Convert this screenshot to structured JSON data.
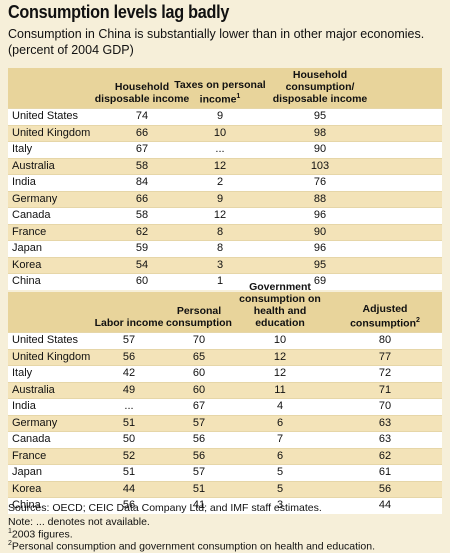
{
  "header": {
    "title": "Consumption levels lag badly",
    "subtitle": "Consumption in China is substantially lower than in other major economies.",
    "unit": "(percent of 2004 GDP)"
  },
  "tables": [
    {
      "columns": [
        {
          "text": "Household disposable income"
        },
        {
          "text": "Taxes on personal income",
          "note": "1"
        },
        {
          "text": "Household consumption/ disposable income"
        }
      ],
      "rows": [
        [
          "United States",
          74,
          9,
          95
        ],
        [
          "United Kingdom",
          66,
          10,
          98
        ],
        [
          "Italy",
          67,
          "...",
          90
        ],
        [
          "Australia",
          58,
          12,
          103
        ],
        [
          "India",
          84,
          2,
          76
        ],
        [
          "Germany",
          66,
          9,
          88
        ],
        [
          "Canada",
          58,
          12,
          96
        ],
        [
          "France",
          62,
          8,
          90
        ],
        [
          "Japan",
          59,
          8,
          96
        ],
        [
          "Korea",
          54,
          3,
          95
        ],
        [
          "China",
          60,
          1,
          69
        ]
      ]
    },
    {
      "columns": [
        {
          "text": "Labor income"
        },
        {
          "text": "Personal consumption"
        },
        {
          "text": "Government consumption on health and education"
        },
        {
          "text": "Adjusted consumption",
          "note": "2"
        }
      ],
      "rows": [
        [
          "United States",
          57,
          70,
          10,
          80
        ],
        [
          "United Kingdom",
          56,
          65,
          12,
          77
        ],
        [
          "Italy",
          42,
          60,
          12,
          72
        ],
        [
          "Australia",
          49,
          60,
          11,
          71
        ],
        [
          "India",
          "...",
          67,
          4,
          70
        ],
        [
          "Germany",
          51,
          57,
          6,
          63
        ],
        [
          "Canada",
          50,
          56,
          7,
          63
        ],
        [
          "France",
          52,
          56,
          6,
          62
        ],
        [
          "Japan",
          51,
          57,
          5,
          61
        ],
        [
          "Korea",
          44,
          51,
          5,
          56
        ],
        [
          "China",
          56,
          41,
          3,
          44
        ]
      ]
    }
  ],
  "footer": {
    "sources": "Sources: OECD; CEIC Data Company Ltd; and IMF staff estimates.",
    "note": "Note: ... denotes not available.",
    "footnotes": [
      {
        "marker": "1",
        "text": "2003 figures."
      },
      {
        "marker": "2",
        "text": "Personal consumption and government consumption on health and education."
      }
    ]
  }
}
